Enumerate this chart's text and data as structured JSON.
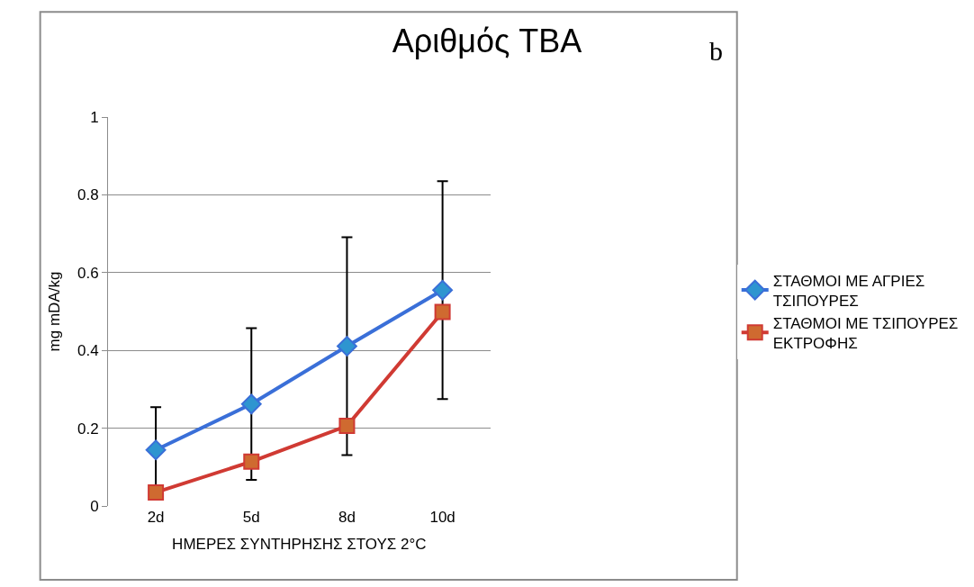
{
  "chart_data": {
    "type": "line",
    "title": "Αριθμός TBA",
    "annotations": [
      "b"
    ],
    "xlabel": "ΗΜΕΡΕΣ ΣΥΝΤΗΡΗΣΗΣ ΣΤΟΥΣ 2°C",
    "ylabel": "mg mDA/kg",
    "categories": [
      "2d",
      "5d",
      "8d",
      "10d"
    ],
    "series": [
      {
        "name": "ΣΤΑΘΜΟΙ ΜΕ ΑΓΡΙΕΣ ΤΣΙΠΟΥΡΕΣ",
        "color": "#3a6fd8",
        "marker": "diamond",
        "values": [
          0.144,
          0.262,
          0.411,
          0.555
        ],
        "errors": [
          0.11,
          0.195,
          0.28,
          0.28
        ]
      },
      {
        "name": "ΣΤΑΘΜΟΙ ΜΕ ΤΣΙΠΟΥΡΕΣ ΕΚΤΡΟΦΗΣ",
        "color": "#d03a33",
        "marker": "square",
        "values": [
          0.035,
          0.114,
          0.206,
          0.499
        ]
      }
    ],
    "ylim": [
      0,
      1
    ],
    "yticks": [
      0,
      0.2,
      0.4,
      0.6,
      0.8,
      1
    ],
    "grid": "y",
    "legend": "right"
  }
}
